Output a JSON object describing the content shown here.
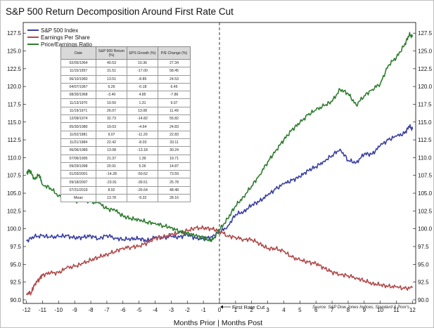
{
  "chart_data": {
    "type": "line",
    "title": "S&P 500 Return Decomposition Around First Rate Cut",
    "xlabel": "Months Prior | Months Post",
    "ylabel": "",
    "x_ticks": [
      -12,
      -11,
      -10,
      -9,
      -8,
      -7,
      -6,
      -5,
      -4,
      -3,
      -2,
      -1,
      0,
      1,
      2,
      3,
      4,
      5,
      6,
      7,
      8,
      9,
      10,
      11,
      12
    ],
    "y_ticks": [
      "90.0",
      "92.5",
      "95.0",
      "97.5",
      "100.0",
      "102.5",
      "105.0",
      "107.5",
      "110.0",
      "112.5",
      "115.0",
      "117.5",
      "120.0",
      "122.5",
      "125.0",
      "127.5"
    ],
    "xlim": [
      -12.2,
      12.2
    ],
    "ylim": [
      89.5,
      129.0
    ],
    "legend_position": "top-left",
    "grid": false,
    "annotation": "First Rate Cut",
    "source": "Source: S&P Dow Jones Indices, Standard & Poor's",
    "series": [
      {
        "name": "S&P 500 Index",
        "color": "#3a3fa0",
        "x": [
          -12,
          -11.5,
          -11,
          -10.5,
          -10,
          -9.5,
          -9,
          -8.5,
          -8,
          -7.5,
          -7,
          -6.5,
          -6,
          -5.5,
          -5,
          -4.5,
          -4,
          -3.5,
          -3,
          -2.5,
          -2,
          -1.5,
          -1,
          -0.5,
          0,
          0.5,
          1,
          1.5,
          2,
          2.5,
          3,
          3.5,
          4,
          4.5,
          5,
          5.5,
          6,
          6.5,
          7,
          7.5,
          8,
          8.5,
          9,
          9.5,
          10,
          10.5,
          11,
          11.5,
          11.8,
          12
        ],
        "y": [
          98.3,
          98.9,
          99.0,
          98.8,
          98.9,
          99.0,
          98.7,
          98.8,
          99.0,
          98.6,
          99.1,
          98.7,
          98.5,
          98.6,
          98.6,
          98.3,
          98.8,
          98.7,
          98.9,
          98.8,
          99.2,
          98.7,
          98.6,
          98.9,
          99.5,
          100.3,
          102.0,
          102.4,
          103.3,
          103.9,
          104.7,
          105.6,
          106.3,
          106.8,
          107.3,
          108.2,
          108.7,
          109.5,
          110.3,
          111.2,
          109.6,
          109.3,
          110.5,
          110.5,
          111.7,
          112.5,
          113.0,
          113.4,
          114.4,
          114.0
        ]
      },
      {
        "name": "Earnings Per Share",
        "color": "#b04a4a",
        "x": [
          -12,
          -11.7,
          -11.5,
          -11.2,
          -11,
          -10.5,
          -10,
          -9.5,
          -9,
          -8.5,
          -8,
          -7.5,
          -7,
          -6.5,
          -6,
          -5.5,
          -5,
          -4.5,
          -4,
          -3.5,
          -3,
          -2.5,
          -2,
          -1.5,
          -1,
          -0.5,
          0,
          0.5,
          1,
          1.5,
          2,
          2.5,
          3,
          3.5,
          4,
          4.5,
          5,
          5.5,
          6,
          6.5,
          7,
          7.5,
          8,
          8.5,
          9,
          9.5,
          10,
          10.5,
          11,
          11.5,
          12
        ],
        "y": [
          90.9,
          91.0,
          92.2,
          92.9,
          93.5,
          93.8,
          93.8,
          94.5,
          94.7,
          95.1,
          95.6,
          96.0,
          96.4,
          96.8,
          97.3,
          97.4,
          97.6,
          98.0,
          98.7,
          98.8,
          99.2,
          99.4,
          99.7,
          100.1,
          100.1,
          100.0,
          99.7,
          99.0,
          98.8,
          98.5,
          98.5,
          97.9,
          97.2,
          97.2,
          96.8,
          96.0,
          95.6,
          95.3,
          95.1,
          94.5,
          93.9,
          93.6,
          93.4,
          93.1,
          92.7,
          92.3,
          92.1,
          91.9,
          91.8,
          91.6,
          91.7
        ]
      },
      {
        "name": "Price/Earnings Ratio",
        "color": "#2e7d2e",
        "x": [
          -12,
          -11.8,
          -11.5,
          -11.2,
          -11,
          -10.5,
          -10,
          -9.5,
          -9,
          -8.5,
          -8,
          -7.5,
          -7,
          -6.5,
          -6,
          -5.5,
          -5,
          -4.5,
          -4,
          -3.5,
          -3,
          -2.5,
          -2,
          -1.5,
          -1,
          -0.7,
          -0.4,
          0,
          0.5,
          1,
          1.5,
          2,
          2.5,
          3,
          3.5,
          4,
          4.5,
          5,
          5.5,
          6,
          6.5,
          7,
          7.5,
          8,
          8.5,
          9,
          9.5,
          10,
          10.5,
          11,
          11.5,
          11.8,
          12
        ],
        "y": [
          107.8,
          108.2,
          107.0,
          107.6,
          106.2,
          105.7,
          104.6,
          105.2,
          103.8,
          104.2,
          103.8,
          103.6,
          102.8,
          102.6,
          101.8,
          101.4,
          101.3,
          100.9,
          100.8,
          100.4,
          100.2,
          99.6,
          99.4,
          99.0,
          98.8,
          98.3,
          98.5,
          99.8,
          101.4,
          103.2,
          104.5,
          106.0,
          107.6,
          109.4,
          111.0,
          112.5,
          113.9,
          114.9,
          116.0,
          116.7,
          117.3,
          117.9,
          119.6,
          119.0,
          117.4,
          118.7,
          119.6,
          120.4,
          123.0,
          124.1,
          125.8,
          127.3,
          127.0
        ]
      }
    ],
    "table": {
      "headers": [
        "Date",
        "S&P 500 Return (%)",
        "EPS Growth (%)",
        "P/E Change (%)"
      ],
      "rows": [
        [
          "02/05/1954",
          "40.53",
          "10.36",
          "27.34"
        ],
        [
          "11/15/1957",
          "31.51",
          "-17.00",
          "58.45"
        ],
        [
          "06/10/1960",
          "13.51",
          "-8.85",
          "24.53"
        ],
        [
          "04/07/1967",
          "6.26",
          "-0.18",
          "6.45"
        ],
        [
          "08/30/1968",
          "-3.40",
          "4.85",
          "-7.86"
        ],
        [
          "11/13/1970",
          "10.50",
          "1.31",
          "9.07"
        ],
        [
          "11/19/1971",
          "26.07",
          "13.08",
          "11.49"
        ],
        [
          "12/09/1974",
          "32.73",
          "-14.82",
          "55.82"
        ],
        [
          "05/30/1980",
          "19.03",
          "-4.64",
          "24.83"
        ],
        [
          "11/02/1981",
          "9.07",
          "-11.20",
          "22.83"
        ],
        [
          "11/21/1984",
          "22.42",
          "-8.03",
          "33.11"
        ],
        [
          "06/06/1989",
          "13.08",
          "-13.18",
          "30.24"
        ],
        [
          "07/06/1995",
          "21.37",
          "1.39",
          "19.71"
        ],
        [
          "09/29/1998",
          "20.91",
          "5.26",
          "14.87"
        ],
        [
          "01/03/2001",
          "-14.28",
          "-50.62",
          "73.59"
        ],
        [
          "09/18/2007",
          "-23.91",
          "-39.51",
          "25.78"
        ],
        [
          "07/31/2019",
          "8.92",
          "-26.64",
          "48.48"
        ],
        [
          "Mean",
          "13.78",
          "-9.32",
          "28.16"
        ]
      ]
    }
  }
}
